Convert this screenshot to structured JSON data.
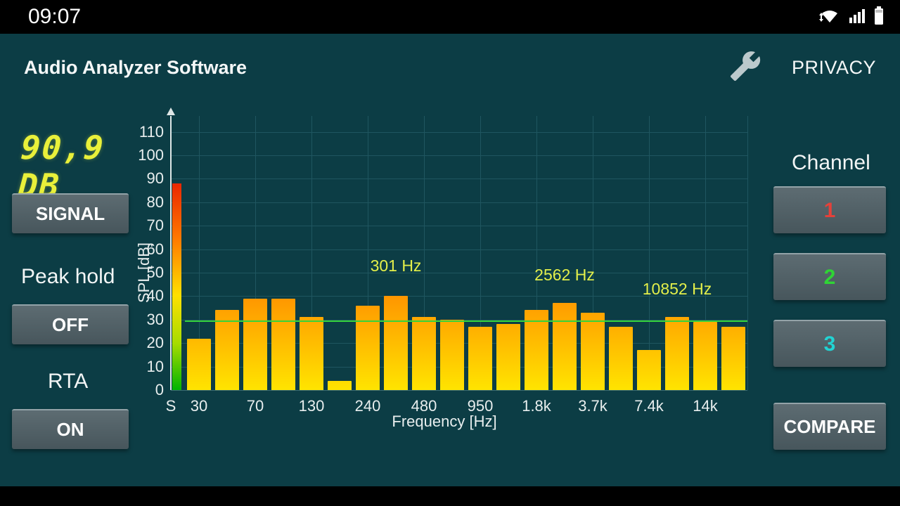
{
  "status_bar": {
    "time": "09:07",
    "icons": [
      "wifi-transfer-icon",
      "cellular-signal-icon",
      "battery-icon"
    ]
  },
  "header": {
    "title": "Audio Analyzer Software",
    "privacy_label": "PRIVACY",
    "settings_icon": "wrench-icon"
  },
  "left_panel": {
    "spl_readout": "90,9 DB",
    "signal_button": "SIGNAL",
    "peak_hold_label": "Peak hold",
    "peak_hold_state": "OFF",
    "rta_label": "RTA",
    "rta_state": "ON"
  },
  "right_panel": {
    "channel_label": "Channel",
    "channels": [
      {
        "label": "1",
        "color": "#e5413a"
      },
      {
        "label": "2",
        "color": "#2fd435"
      },
      {
        "label": "3",
        "color": "#22d3d3"
      }
    ],
    "compare_button": "COMPARE"
  },
  "chart_data": {
    "type": "bar",
    "title": "",
    "xlabel": "Frequency [Hz]",
    "ylabel": "SPL [dB]",
    "ylim": [
      0,
      116
    ],
    "yticks": [
      0,
      10,
      20,
      30,
      40,
      50,
      60,
      70,
      80,
      90,
      100,
      110
    ],
    "x_tick_labels": [
      "S",
      "30",
      "70",
      "130",
      "240",
      "480",
      "950",
      "1.8k",
      "3.7k",
      "7.4k",
      "14k"
    ],
    "signal_bar": {
      "label": "S",
      "value_db": 88
    },
    "values": [
      22,
      34,
      39,
      39,
      31,
      4,
      36,
      40,
      31,
      30,
      27,
      28,
      34,
      37,
      33,
      27,
      17,
      31,
      29,
      27
    ],
    "peak_line_db": 29.5,
    "annotations": [
      {
        "text": "301 Hz",
        "bar_index": 7,
        "db": 53
      },
      {
        "text": "2562 Hz",
        "bar_index": 13,
        "db": 49
      },
      {
        "text": "10852 Hz",
        "bar_index": 17,
        "db": 43
      }
    ],
    "bar_gradient": [
      "#ffe400",
      "#ff8c00"
    ],
    "grid": true,
    "grid_color": "#1f5660",
    "accent_text_color": "#e3ef4a",
    "peak_line_color": "#35d33c"
  }
}
